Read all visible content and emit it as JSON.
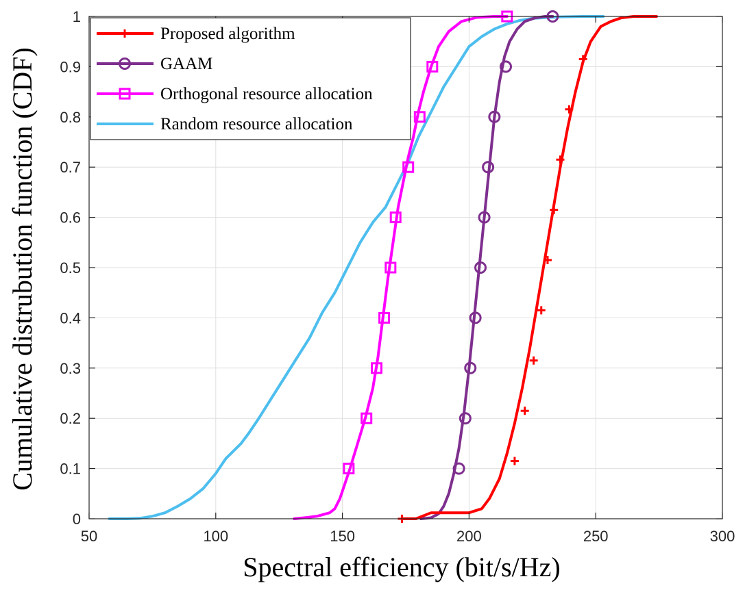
{
  "chart_data": {
    "type": "line",
    "title": "",
    "xlabel": "Spectral efficiency (bit/s/Hz)",
    "ylabel": "Cumulative distrubution function (CDF)",
    "xlim": [
      50,
      300
    ],
    "ylim": [
      0,
      1
    ],
    "xticks": [
      50,
      100,
      150,
      200,
      250,
      300
    ],
    "yticks": [
      0,
      0.1,
      0.2,
      0.3,
      0.4,
      0.5,
      0.6,
      0.7,
      0.8,
      0.9,
      1
    ],
    "xtick_labels": [
      "50",
      "100",
      "150",
      "200",
      "250",
      "300"
    ],
    "ytick_labels": [
      "0",
      "0.1",
      "0.2",
      "0.3",
      "0.4",
      "0.5",
      "0.6",
      "0.7",
      "0.8",
      "0.9",
      "1"
    ],
    "grid": true,
    "legend_position": "top-left",
    "series": [
      {
        "name": "Proposed algorithm",
        "color": "#ff0000",
        "marker": "plus",
        "x": [
          173.5,
          179,
          185,
          190,
          195,
          200,
          205,
          208,
          212,
          215,
          218,
          221,
          224,
          227,
          230,
          233,
          236,
          239,
          242,
          245,
          248,
          252,
          256,
          260,
          265,
          270,
          274
        ],
        "y": [
          0,
          0,
          0.012,
          0.012,
          0.012,
          0.012,
          0.02,
          0.04,
          0.08,
          0.13,
          0.19,
          0.26,
          0.34,
          0.43,
          0.52,
          0.61,
          0.7,
          0.78,
          0.85,
          0.91,
          0.95,
          0.98,
          0.99,
          0.997,
          1,
          1,
          1
        ],
        "marker_x": [
          173.5,
          218,
          222,
          225.5,
          228.5,
          231,
          233.5,
          236,
          239.5,
          245
        ],
        "marker_y": [
          0,
          0.115,
          0.215,
          0.315,
          0.415,
          0.515,
          0.615,
          0.715,
          0.815,
          0.915
        ]
      },
      {
        "name": "GAAM",
        "color": "#7e2f8e",
        "marker": "circle",
        "x": [
          181,
          185,
          188,
          190,
          192,
          194,
          196,
          198,
          200,
          202,
          204,
          206,
          208,
          210,
          212,
          214,
          216,
          219,
          222,
          226,
          230,
          233
        ],
        "y": [
          0,
          0.002,
          0.01,
          0.025,
          0.05,
          0.09,
          0.14,
          0.21,
          0.3,
          0.4,
          0.5,
          0.6,
          0.7,
          0.8,
          0.87,
          0.92,
          0.95,
          0.975,
          0.99,
          0.997,
          1,
          1
        ],
        "marker_x": [
          196,
          198.5,
          200.5,
          202.5,
          204.5,
          206,
          207.5,
          210,
          214.5,
          233
        ],
        "marker_y": [
          0.1,
          0.2,
          0.3,
          0.4,
          0.5,
          0.6,
          0.7,
          0.8,
          0.9,
          1.0
        ]
      },
      {
        "name": "Orthogonal resource allocation",
        "color": "#ff00ff",
        "marker": "square",
        "x": [
          131,
          135,
          140,
          145,
          147,
          149,
          151,
          153,
          156,
          159,
          162,
          164,
          166,
          168,
          170,
          172,
          174,
          176,
          178,
          180,
          182,
          185,
          188,
          192,
          197,
          203,
          210,
          215
        ],
        "y": [
          0,
          0.002,
          0.005,
          0.012,
          0.02,
          0.04,
          0.07,
          0.1,
          0.15,
          0.2,
          0.26,
          0.32,
          0.4,
          0.48,
          0.55,
          0.62,
          0.67,
          0.72,
          0.76,
          0.81,
          0.85,
          0.9,
          0.94,
          0.97,
          0.99,
          0.998,
          1,
          1
        ],
        "marker_x": [
          152.5,
          159.5,
          163.5,
          166.5,
          169,
          171,
          176,
          180.5,
          185.5,
          215
        ],
        "marker_y": [
          0.1,
          0.2,
          0.3,
          0.4,
          0.5,
          0.6,
          0.7,
          0.8,
          0.9,
          1.0
        ]
      },
      {
        "name": "Random resource allocation",
        "color": "#4dbeee",
        "marker": "none",
        "x": [
          58,
          65,
          70,
          75,
          80,
          85,
          90,
          95,
          100,
          104,
          110,
          113,
          117,
          122,
          127,
          132,
          137,
          142,
          147,
          152,
          157,
          162,
          167,
          170,
          173,
          176,
          180,
          185,
          190,
          195,
          200,
          205,
          210,
          215,
          220,
          225,
          235,
          245,
          253
        ],
        "y": [
          0,
          0,
          0.001,
          0.005,
          0.012,
          0.025,
          0.04,
          0.06,
          0.09,
          0.12,
          0.15,
          0.17,
          0.2,
          0.24,
          0.28,
          0.32,
          0.36,
          0.41,
          0.45,
          0.5,
          0.55,
          0.59,
          0.62,
          0.65,
          0.68,
          0.71,
          0.76,
          0.81,
          0.86,
          0.9,
          0.94,
          0.96,
          0.975,
          0.985,
          0.992,
          0.996,
          0.999,
          1,
          1
        ]
      }
    ]
  }
}
